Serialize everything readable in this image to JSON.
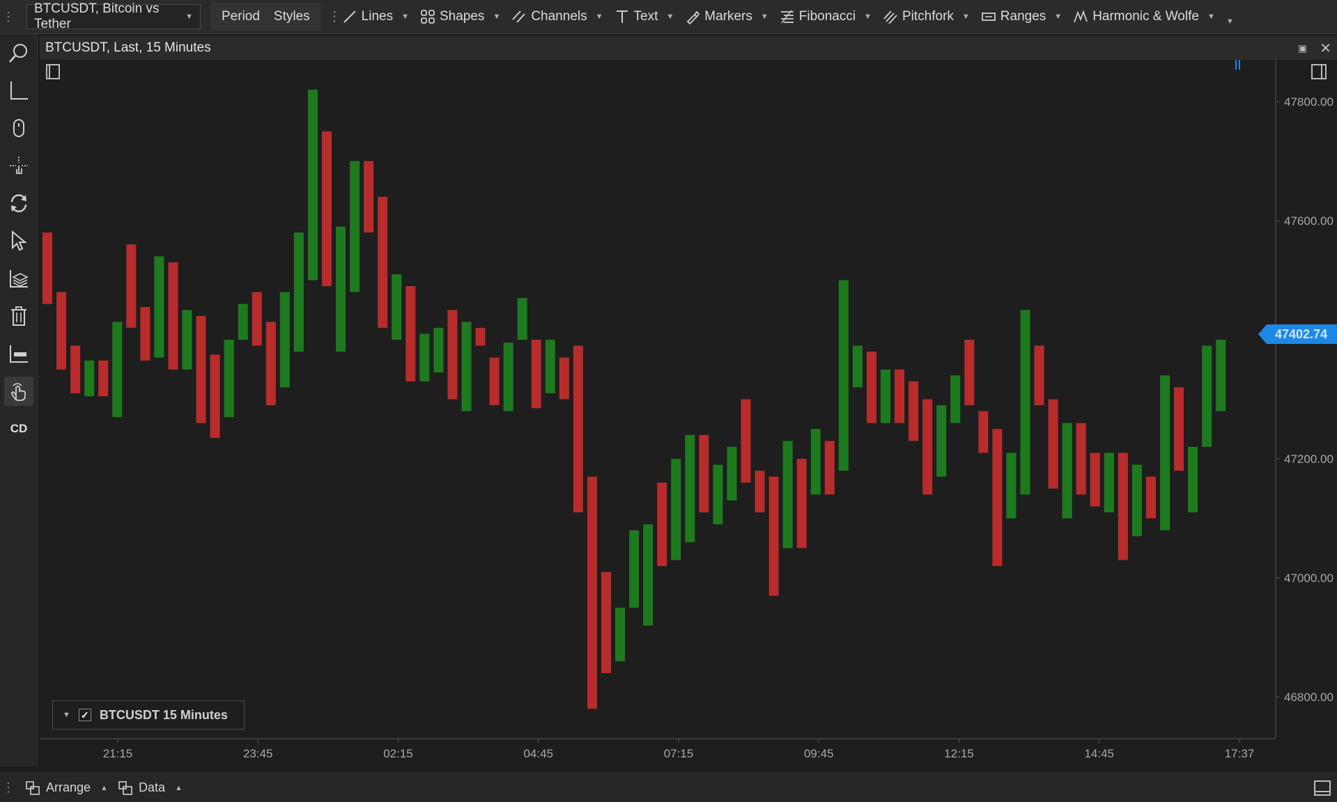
{
  "toolbar": {
    "symbol": "BTCUSDT, Bitcoin vs Tether",
    "period_label": "Period",
    "styles_label": "Styles",
    "tools": [
      {
        "label": "Lines",
        "icon": "line-icon"
      },
      {
        "label": "Shapes",
        "icon": "shapes-icon"
      },
      {
        "label": "Channels",
        "icon": "channels-icon"
      },
      {
        "label": "Text",
        "icon": "text-icon"
      },
      {
        "label": "Markers",
        "icon": "marker-icon"
      },
      {
        "label": "Fibonacci",
        "icon": "fibonacci-icon"
      },
      {
        "label": "Pitchfork",
        "icon": "pitchfork-icon"
      },
      {
        "label": "Ranges",
        "icon": "ranges-icon"
      },
      {
        "label": "Harmonic & Wolfe",
        "icon": "harmonic-icon"
      }
    ]
  },
  "sidebar": {
    "items": [
      {
        "name": "zoom-icon"
      },
      {
        "name": "axis-icon"
      },
      {
        "name": "mouse-icon"
      },
      {
        "name": "pan-icon"
      },
      {
        "name": "refresh-icon"
      },
      {
        "name": "cursor-icon"
      },
      {
        "name": "layers-icon"
      },
      {
        "name": "trash-icon"
      },
      {
        "name": "ruler-icon"
      },
      {
        "name": "hand-pointer-icon"
      }
    ],
    "cd_label": "CD"
  },
  "panel": {
    "title": "BTCUSDT, Last, 15 Minutes",
    "legend_label": "BTCUSDT 15 Minutes",
    "last_price": "47402.74"
  },
  "bottombar": {
    "arrange_label": "Arrange",
    "data_label": "Data"
  },
  "colors": {
    "up": "#1e7a1e",
    "down": "#b82c2c",
    "accent": "#1e88e5"
  },
  "chart_data": {
    "type": "candlestick",
    "x_tick_labels": [
      "21:15",
      "23:45",
      "02:15",
      "04:45",
      "07:15",
      "09:45",
      "12:15",
      "14:45",
      "17:37"
    ],
    "y_tick_labels": [
      "47800.00",
      "47600.00",
      "47200.00",
      "47000.00",
      "46800.00"
    ],
    "ylim": [
      46730,
      47870
    ],
    "candles": [
      {
        "o": 47580,
        "c": 47460
      },
      {
        "o": 47480,
        "c": 47350
      },
      {
        "o": 47390,
        "c": 47310
      },
      {
        "o": 47305,
        "c": 47365
      },
      {
        "o": 47365,
        "c": 47305
      },
      {
        "o": 47270,
        "c": 47430
      },
      {
        "o": 47560,
        "c": 47420
      },
      {
        "o": 47455,
        "c": 47365
      },
      {
        "o": 47370,
        "c": 47540
      },
      {
        "o": 47530,
        "c": 47350
      },
      {
        "o": 47350,
        "c": 47450
      },
      {
        "o": 47440,
        "c": 47260
      },
      {
        "o": 47375,
        "c": 47235
      },
      {
        "o": 47270,
        "c": 47400
      },
      {
        "o": 47400,
        "c": 47460
      },
      {
        "o": 47480,
        "c": 47390
      },
      {
        "o": 47430,
        "c": 47290
      },
      {
        "o": 47320,
        "c": 47480
      },
      {
        "o": 47380,
        "c": 47580
      },
      {
        "o": 47500,
        "c": 47820
      },
      {
        "o": 47750,
        "c": 47490
      },
      {
        "o": 47380,
        "c": 47590
      },
      {
        "o": 47480,
        "c": 47700
      },
      {
        "o": 47700,
        "c": 47580
      },
      {
        "o": 47640,
        "c": 47420
      },
      {
        "o": 47400,
        "c": 47510
      },
      {
        "o": 47490,
        "c": 47330
      },
      {
        "o": 47330,
        "c": 47410
      },
      {
        "o": 47345,
        "c": 47420
      },
      {
        "o": 47450,
        "c": 47300
      },
      {
        "o": 47280,
        "c": 47430
      },
      {
        "o": 47420,
        "c": 47390
      },
      {
        "o": 47370,
        "c": 47290
      },
      {
        "o": 47280,
        "c": 47395
      },
      {
        "o": 47400,
        "c": 47470
      },
      {
        "o": 47400,
        "c": 47285
      },
      {
        "o": 47310,
        "c": 47400
      },
      {
        "o": 47370,
        "c": 47300
      },
      {
        "o": 47390,
        "c": 47110
      },
      {
        "o": 47170,
        "c": 46780
      },
      {
        "o": 47010,
        "c": 46840
      },
      {
        "o": 46860,
        "c": 46950
      },
      {
        "o": 46950,
        "c": 47080
      },
      {
        "o": 46920,
        "c": 47090
      },
      {
        "o": 47160,
        "c": 47020
      },
      {
        "o": 47030,
        "c": 47200
      },
      {
        "o": 47060,
        "c": 47240
      },
      {
        "o": 47240,
        "c": 47110
      },
      {
        "o": 47090,
        "c": 47190
      },
      {
        "o": 47130,
        "c": 47220
      },
      {
        "o": 47300,
        "c": 47160
      },
      {
        "o": 47180,
        "c": 47110
      },
      {
        "o": 47170,
        "c": 46970
      },
      {
        "o": 47050,
        "c": 47230
      },
      {
        "o": 47200,
        "c": 47050
      },
      {
        "o": 47140,
        "c": 47250
      },
      {
        "o": 47230,
        "c": 47140
      },
      {
        "o": 47180,
        "c": 47500
      },
      {
        "o": 47320,
        "c": 47390
      },
      {
        "o": 47380,
        "c": 47260
      },
      {
        "o": 47260,
        "c": 47350
      },
      {
        "o": 47350,
        "c": 47260
      },
      {
        "o": 47330,
        "c": 47230
      },
      {
        "o": 47300,
        "c": 47140
      },
      {
        "o": 47170,
        "c": 47290
      },
      {
        "o": 47260,
        "c": 47340
      },
      {
        "o": 47400,
        "c": 47290
      },
      {
        "o": 47280,
        "c": 47210
      },
      {
        "o": 47250,
        "c": 47020
      },
      {
        "o": 47100,
        "c": 47210
      },
      {
        "o": 47140,
        "c": 47450
      },
      {
        "o": 47390,
        "c": 47290
      },
      {
        "o": 47300,
        "c": 47150
      },
      {
        "o": 47100,
        "c": 47260
      },
      {
        "o": 47260,
        "c": 47140
      },
      {
        "o": 47210,
        "c": 47120
      },
      {
        "o": 47110,
        "c": 47210
      },
      {
        "o": 47210,
        "c": 47030
      },
      {
        "o": 47070,
        "c": 47190
      },
      {
        "o": 47170,
        "c": 47100
      },
      {
        "o": 47080,
        "c": 47340
      },
      {
        "o": 47320,
        "c": 47180
      },
      {
        "o": 47110,
        "c": 47220
      },
      {
        "o": 47220,
        "c": 47390
      },
      {
        "o": 47280,
        "c": 47400
      }
    ]
  }
}
